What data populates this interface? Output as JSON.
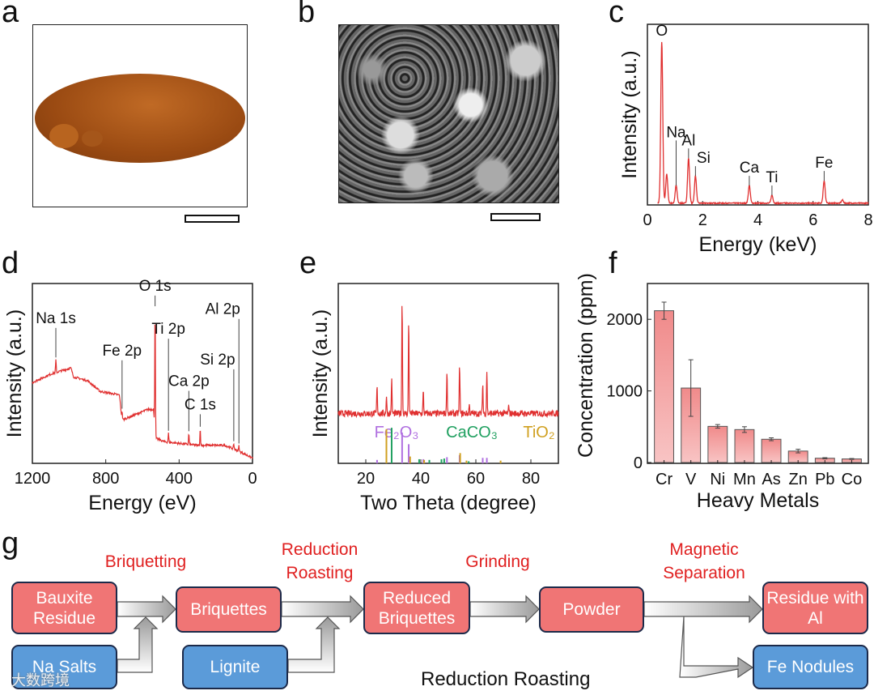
{
  "panels": {
    "a": "a",
    "b": "b",
    "c": "c",
    "d": "d",
    "e": "e",
    "f": "f",
    "g": "g"
  },
  "colors": {
    "spectrum": "#e03030",
    "bar_fill": "#f4a0a0",
    "bar_edge": "#555555",
    "box_red": "#f07575",
    "box_blue": "#5b9bd9",
    "step_text": "#e02020",
    "fe2o3": "#b070e0",
    "caco3": "#20a060",
    "tio2": "#d0a020"
  },
  "chart_data": [
    {
      "panel": "c",
      "type": "line",
      "xlabel": "Energy (keV)",
      "ylabel": "Intensity (a.u.)",
      "xlim": [
        0,
        8
      ],
      "xticks": [
        "0",
        "2",
        "4",
        "6",
        "8"
      ],
      "peaks": [
        {
          "x": 0.52,
          "h": 1.0,
          "label": "O"
        },
        {
          "x": 0.7,
          "h": 0.18
        },
        {
          "x": 1.04,
          "h": 0.11,
          "label": "Na"
        },
        {
          "x": 1.49,
          "h": 0.28,
          "label": "Al"
        },
        {
          "x": 1.74,
          "h": 0.17,
          "label": "Si"
        },
        {
          "x": 3.69,
          "h": 0.11,
          "label": "Ca"
        },
        {
          "x": 4.51,
          "h": 0.05,
          "label": "Ti"
        },
        {
          "x": 6.4,
          "h": 0.14,
          "label": "Fe"
        },
        {
          "x": 7.06,
          "h": 0.02
        }
      ]
    },
    {
      "panel": "d",
      "type": "line",
      "xlabel": "Energy (eV)",
      "ylabel": "Intensity (a.u.)",
      "xlim": [
        1200,
        0
      ],
      "xticks": [
        "1200",
        "800",
        "400",
        "0"
      ],
      "background": [
        [
          1200,
          0.45
        ],
        [
          1090,
          0.5
        ],
        [
          990,
          0.53
        ],
        [
          975,
          0.48
        ],
        [
          900,
          0.46
        ],
        [
          830,
          0.4
        ],
        [
          725,
          0.38
        ],
        [
          712,
          0.24
        ],
        [
          570,
          0.3
        ],
        [
          540,
          0.3
        ],
        [
          528,
          0.14
        ],
        [
          480,
          0.12
        ],
        [
          300,
          0.1
        ],
        [
          150,
          0.1
        ],
        [
          80,
          0.07
        ],
        [
          0,
          0.03
        ]
      ],
      "peaks": [
        {
          "x": 1072,
          "h": 0.07,
          "label": "Na 1s"
        },
        {
          "x": 711,
          "h": 0.05,
          "label": "Fe 2p"
        },
        {
          "x": 531,
          "h": 0.68,
          "label": "O 1s"
        },
        {
          "x": 458,
          "h": 0.05,
          "label": "Ti 2p"
        },
        {
          "x": 347,
          "h": 0.06,
          "label": "Ca 2p"
        },
        {
          "x": 285,
          "h": 0.09,
          "label": "C 1s"
        },
        {
          "x": 102,
          "h": 0.03,
          "label": "Si 2p"
        },
        {
          "x": 74,
          "h": 0.03,
          "label": "Al 2p"
        }
      ]
    },
    {
      "panel": "e",
      "type": "line",
      "xlabel": "Two Theta (degree)",
      "ylabel": "Intensity (a.u.)",
      "xlim": [
        10,
        90
      ],
      "xticks": [
        "20",
        "40",
        "60",
        "80"
      ],
      "baseline": 0.27,
      "peaks": [
        [
          24.1,
          0.15
        ],
        [
          27.5,
          0.1
        ],
        [
          29.4,
          0.19
        ],
        [
          33.2,
          0.62
        ],
        [
          35.6,
          0.52
        ],
        [
          40.9,
          0.12
        ],
        [
          49.5,
          0.24
        ],
        [
          54.1,
          0.27
        ],
        [
          57.6,
          0.05
        ],
        [
          62.5,
          0.17
        ],
        [
          64.0,
          0.24
        ],
        [
          72.0,
          0.05
        ]
      ],
      "legend": [
        {
          "name": "Fe₂O₃",
          "color": "#b070e0",
          "sticks": [
            [
              24.1,
              0.05
            ],
            [
              33.2,
              0.45
            ],
            [
              35.6,
              0.28
            ],
            [
              40.9,
              0.06
            ],
            [
              49.5,
              0.09
            ],
            [
              54.1,
              0.12
            ],
            [
              62.5,
              0.08
            ],
            [
              64.0,
              0.08
            ]
          ]
        },
        {
          "name": "CaCO₃",
          "color": "#20a060",
          "sticks": [
            [
              29.4,
              0.52
            ],
            [
              39.4,
              0.06
            ],
            [
              43.1,
              0.05
            ],
            [
              47.5,
              0.06
            ],
            [
              48.5,
              0.07
            ],
            [
              57.4,
              0.03
            ]
          ]
        },
        {
          "name": "TiO₂",
          "color": "#d0a020",
          "sticks": [
            [
              27.5,
              0.5
            ],
            [
              36.1,
              0.1
            ],
            [
              41.2,
              0.05
            ],
            [
              54.3,
              0.15
            ],
            [
              56.6,
              0.04
            ],
            [
              69.0,
              0.04
            ]
          ]
        }
      ]
    },
    {
      "panel": "f",
      "type": "bar",
      "xlabel": "Heavy Metals",
      "ylabel": "Concentration (ppm)",
      "ylim": [
        0,
        2500
      ],
      "yticks": [
        "0",
        "1000",
        "2000"
      ],
      "categories": [
        "Cr",
        "V",
        "Ni",
        "Mn",
        "As",
        "Zn",
        "Pb",
        "Co"
      ],
      "values": [
        2120,
        1040,
        505,
        460,
        325,
        160,
        60,
        50
      ],
      "errors": [
        120,
        395,
        25,
        40,
        20,
        25,
        8,
        6
      ]
    }
  ],
  "flow": {
    "boxes": {
      "bauxite": "Bauxite Residue",
      "briquettes": "Briquettes",
      "reduced": "Reduced Briquettes",
      "powder": "Powder",
      "residue_al": "Residue with Al",
      "na_salts": "Na Salts",
      "lignite": "Lignite",
      "fe_nodules": "Fe Nodules"
    },
    "steps": {
      "briquetting": "Briquetting",
      "roasting": "Reduction Roasting",
      "grinding": "Grinding",
      "magnetic": "Magnetic Separation"
    },
    "caption": "Reduction Roasting"
  },
  "watermark": "大数跨境"
}
